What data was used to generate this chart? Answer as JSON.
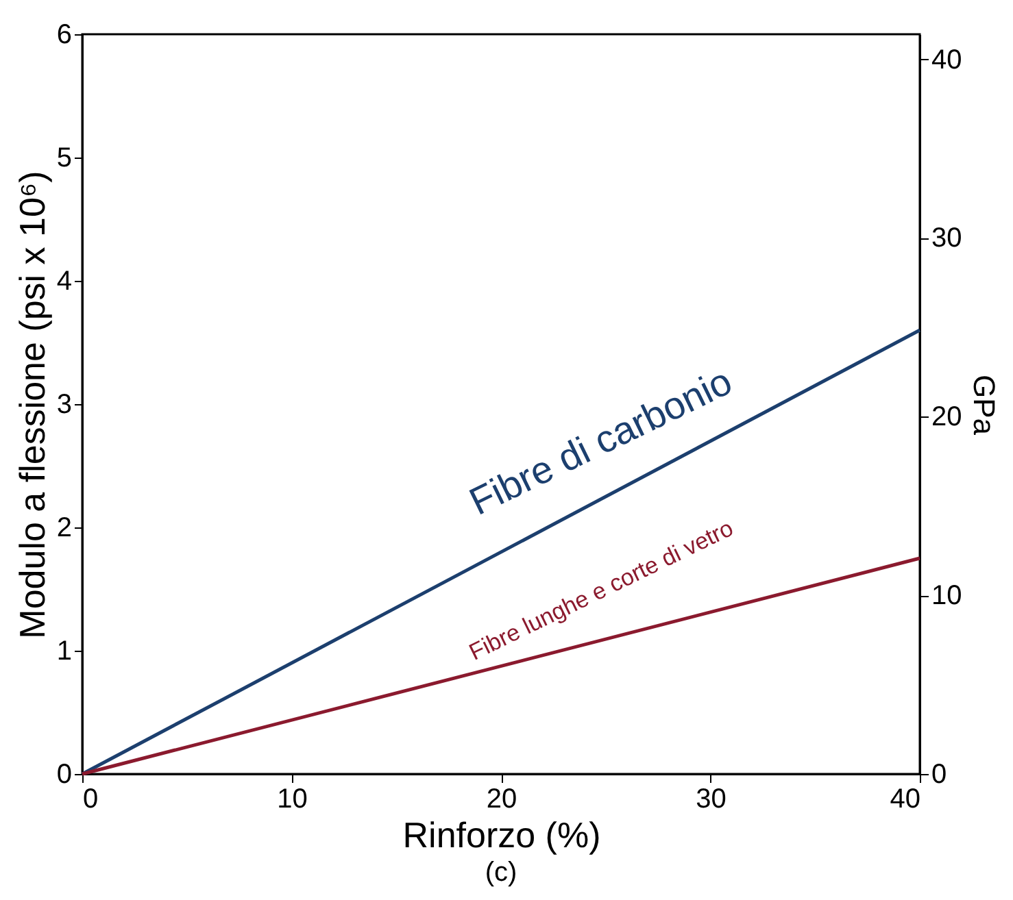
{
  "chart_data": {
    "type": "line",
    "x": [
      0,
      40
    ],
    "xlim": [
      0,
      40
    ],
    "xticks": [
      0,
      10,
      20,
      30,
      40
    ],
    "ylim": [
      0,
      6
    ],
    "yticks": [
      0,
      1,
      2,
      3,
      4,
      5,
      6
    ],
    "y2lim": [
      0,
      41.4
    ],
    "y2ticks": [
      0,
      10,
      20,
      30,
      40
    ],
    "xlabel": "Rinforzo (%)",
    "ylabel": "Modulo a flessione (psi x 10⁶)",
    "y2label": "GPa",
    "grid": false,
    "legend": false,
    "marker": "none",
    "line_style": "solid",
    "series": [
      {
        "name": "Fibre di carbonio",
        "color": "#1c3f6e",
        "values": [
          0,
          3.6
        ]
      },
      {
        "name": "Fibre lunghe e corte di vetro",
        "color": "#8b1a2e",
        "values": [
          0,
          1.75
        ]
      }
    ],
    "annotations": [
      "(c)"
    ]
  }
}
